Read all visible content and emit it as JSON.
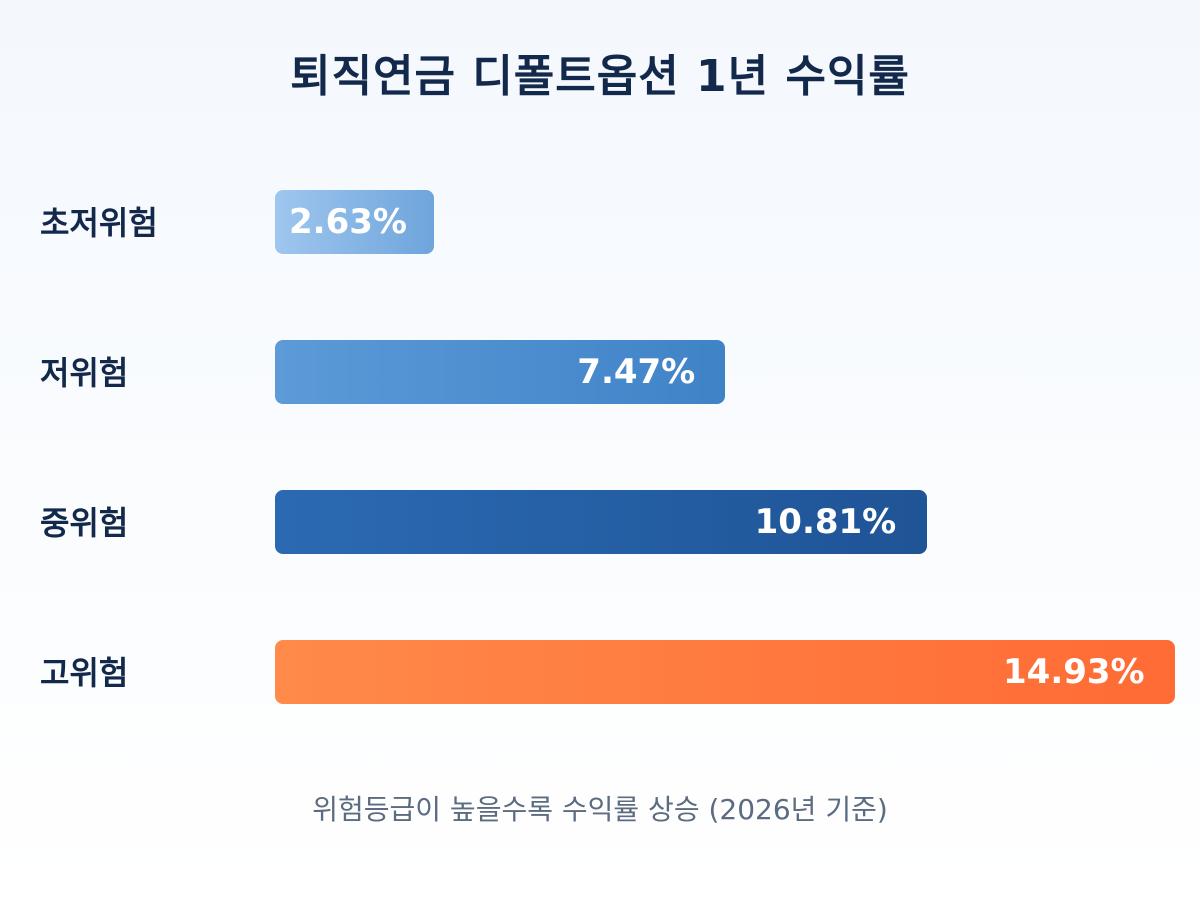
{
  "chart_data": {
    "type": "bar",
    "orientation": "horizontal",
    "title": "퇴직연금 디폴트옵션 1년 수익률",
    "categories": [
      "초저위험",
      "저위험",
      "중위험",
      "고위험"
    ],
    "values": [
      2.63,
      7.47,
      10.81,
      14.93
    ],
    "value_labels": [
      "2.63%",
      "7.47%",
      "10.81%",
      "14.93%"
    ],
    "colors": [
      [
        "#9fc6ee",
        "#6ea5dc"
      ],
      [
        "#5c9ad8",
        "#3f83c7"
      ],
      [
        "#2b6ab3",
        "#1f5496"
      ],
      [
        "#ff8a4a",
        "#ff6b35"
      ]
    ],
    "xlim": [
      0,
      14.93
    ],
    "grid": false,
    "note": "위험등급이 높을수록 수익률 상승 (2026년 기준)"
  }
}
